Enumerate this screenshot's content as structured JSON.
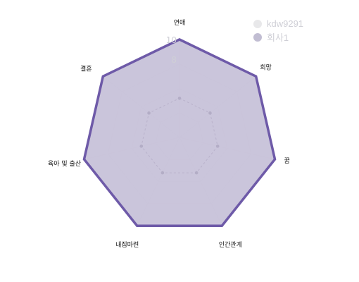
{
  "chart_data": {
    "type": "radar",
    "categories": [
      "연애",
      "희망",
      "꿈",
      "인간관계",
      "내집마련",
      "육아 및 출산",
      "결혼"
    ],
    "series": [
      {
        "name": "kdw9291",
        "values": [
          4,
          4,
          4,
          4,
          4,
          4,
          4
        ],
        "color": "#d4d4d8",
        "style": "dashed-points"
      },
      {
        "name": "회사1",
        "values": [
          10,
          10,
          10,
          10,
          10,
          10,
          10
        ],
        "color": "#6e5aa8",
        "fill": "#c7c2d9"
      }
    ],
    "range": [
      0,
      10
    ],
    "visible_ticks": [
      "8",
      "10"
    ],
    "grid": true,
    "legend_position": "top-right"
  },
  "legend": [
    {
      "label": "kdw9291",
      "color": "#e8e8ea"
    },
    {
      "label": "회사1",
      "color": "#c1bdd2"
    }
  ]
}
